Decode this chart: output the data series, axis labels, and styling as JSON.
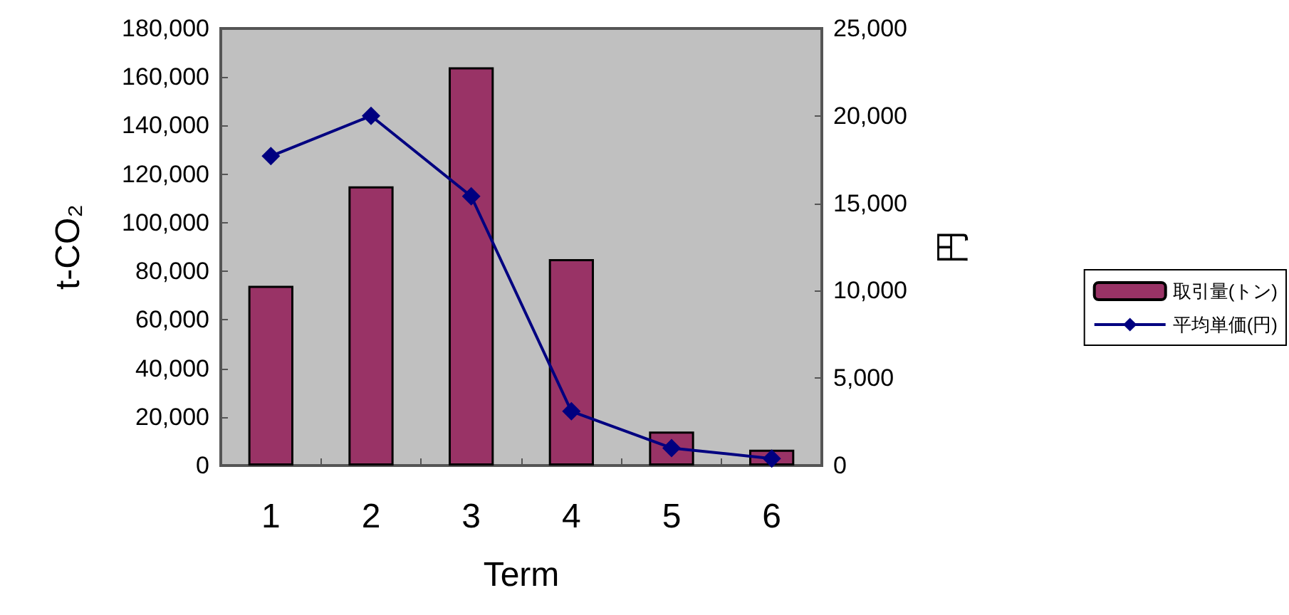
{
  "chart_data": {
    "type": "bar",
    "categories": [
      "1",
      "2",
      "3",
      "4",
      "5",
      "6"
    ],
    "xlabel": "Term",
    "ylabel": "t-CO₂",
    "y2label": "円",
    "ylim": [
      0,
      180000
    ],
    "yticks": [
      0,
      {
        "value": 20000,
        "label": "20,000"
      },
      {
        "value": 40000,
        "label": "40,000"
      },
      {
        "value": 60000,
        "label": "60,000"
      },
      {
        "value": 80000,
        "label": "80,000"
      },
      {
        "value": 100000,
        "label": "100,000"
      },
      {
        "value": 120000,
        "label": "120,000"
      },
      {
        "value": 140000,
        "label": "140,000"
      },
      {
        "value": 160000,
        "label": "160,000"
      },
      {
        "value": 180000,
        "label": "180,000"
      }
    ],
    "y2lim": [
      0,
      25000
    ],
    "y2ticks": [
      0,
      {
        "value": 5000,
        "label": "5,000"
      },
      {
        "value": 10000,
        "label": "10,000"
      },
      {
        "value": 15000,
        "label": "15,000"
      },
      {
        "value": 20000,
        "label": "20,000"
      },
      {
        "value": 25000,
        "label": "25,000"
      }
    ],
    "series": [
      {
        "name": "取引量(トン)",
        "color": "#993366",
        "values": [
          74000,
          115000,
          164000,
          85000,
          14000,
          6500
        ]
      },
      {
        "name": "平均単価(円)",
        "type": "line",
        "axis": "y2",
        "color": "#000080",
        "marker": "diamond",
        "line_style": "solid",
        "values": [
          17700,
          20000,
          15400,
          3100,
          1000,
          400
        ]
      }
    ],
    "legend": "right",
    "grid": false
  }
}
